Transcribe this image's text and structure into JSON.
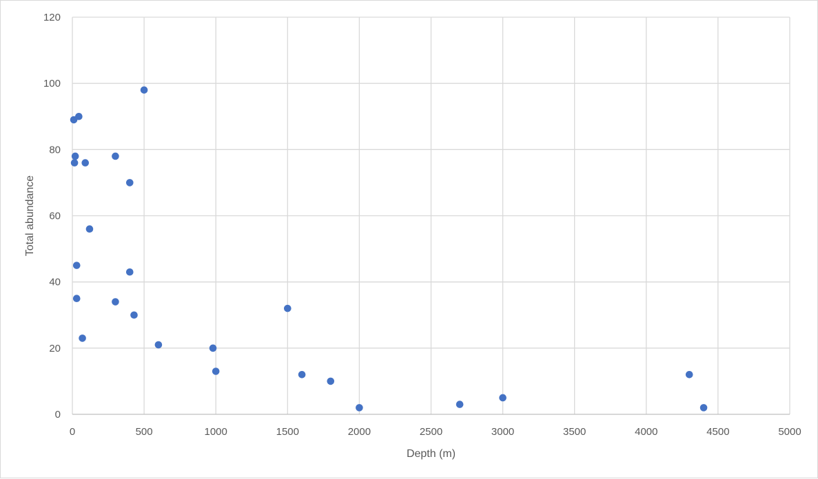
{
  "chart_data": {
    "type": "scatter",
    "title": "",
    "xlabel": "Depth (m)",
    "ylabel": "Total abundance",
    "xlim": [
      0,
      5000
    ],
    "ylim": [
      0,
      120
    ],
    "x_ticks": [
      "0",
      "500",
      "1000",
      "1500",
      "2000",
      "2500",
      "3000",
      "3500",
      "4000",
      "4500",
      "5000"
    ],
    "y_ticks": [
      "0",
      "20",
      "40",
      "60",
      "80",
      "100",
      "120"
    ],
    "grid": true,
    "legend": "none",
    "marker_color": "#4472c4",
    "series": [
      {
        "points": [
          {
            "x": 10,
            "y": 89
          },
          {
            "x": 45,
            "y": 90
          },
          {
            "x": 20,
            "y": 78
          },
          {
            "x": 15,
            "y": 76
          },
          {
            "x": 90,
            "y": 76
          },
          {
            "x": 500,
            "y": 98
          },
          {
            "x": 300,
            "y": 78
          },
          {
            "x": 400,
            "y": 70
          },
          {
            "x": 120,
            "y": 56
          },
          {
            "x": 30,
            "y": 45
          },
          {
            "x": 400,
            "y": 43
          },
          {
            "x": 30,
            "y": 35
          },
          {
            "x": 300,
            "y": 34
          },
          {
            "x": 430,
            "y": 30
          },
          {
            "x": 70,
            "y": 23
          },
          {
            "x": 600,
            "y": 21
          },
          {
            "x": 980,
            "y": 20
          },
          {
            "x": 1000,
            "y": 13
          },
          {
            "x": 1500,
            "y": 32
          },
          {
            "x": 1600,
            "y": 12
          },
          {
            "x": 1800,
            "y": 10
          },
          {
            "x": 2000,
            "y": 2
          },
          {
            "x": 2700,
            "y": 3
          },
          {
            "x": 3000,
            "y": 5
          },
          {
            "x": 4300,
            "y": 12
          },
          {
            "x": 4400,
            "y": 2
          }
        ]
      }
    ]
  }
}
